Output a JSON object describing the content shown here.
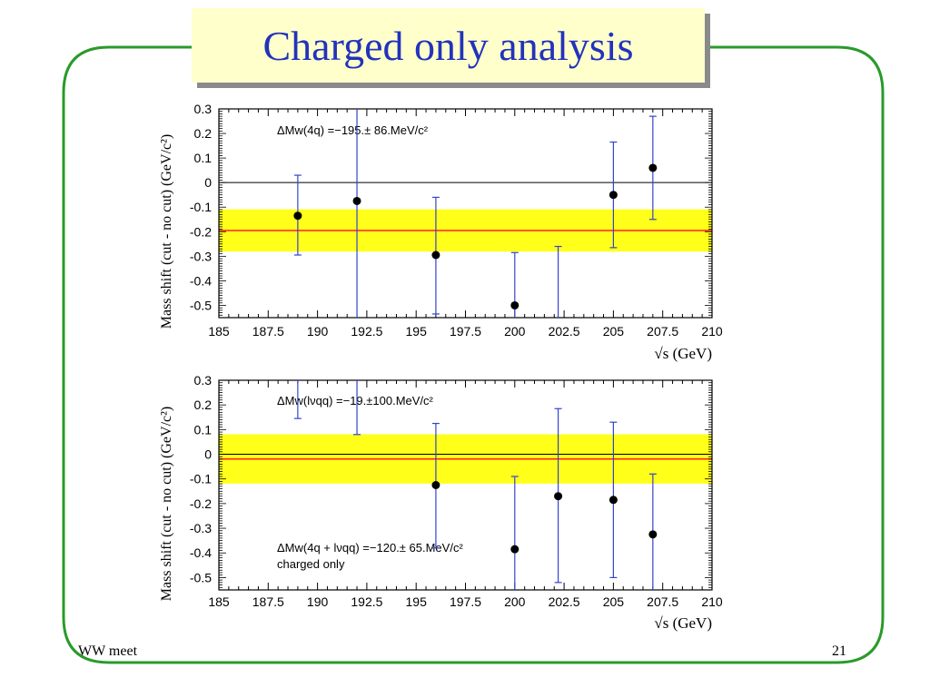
{
  "slide": {
    "title": "Charged only analysis",
    "footer_left": "WW meet",
    "page_number": "21"
  },
  "colors": {
    "frame": "#2a9a2a",
    "title_text": "#2233bb",
    "title_box": "#ffffcc",
    "band": "#ffff1a",
    "mean_line": "#ff2020",
    "error_bar": "#3344cc",
    "point": "#000000"
  },
  "chart_data": [
    {
      "type": "scatter",
      "title": "",
      "ylabel": "Mass shift (cut - no cut) (GeV/c²)",
      "xlabel": "√s (GeV)",
      "xlim": [
        185,
        210
      ],
      "ylim": [
        -0.55,
        0.3
      ],
      "x_ticks": [
        "185",
        "187.5",
        "190",
        "192.5",
        "195",
        "197.5",
        "200",
        "202.5",
        "205",
        "207.5",
        "210"
      ],
      "y_ticks": [
        "0.3",
        "0.2",
        "0.1",
        "0",
        "-0.1",
        "-0.2",
        "-0.3",
        "-0.4",
        "-0.5"
      ],
      "annotations": [
        "ΔMw(4q) =−195.± 86.MeV/c²"
      ],
      "band": {
        "center": -0.195,
        "low": -0.281,
        "high": -0.109
      },
      "zero_line": true,
      "points": [
        {
          "x": 189,
          "y": -0.135,
          "err_low": -0.295,
          "err_high": 0.03
        },
        {
          "x": 192,
          "y": -0.075,
          "err_low": -0.55,
          "err_high": 0.3
        },
        {
          "x": 196,
          "y": -0.295,
          "err_low": -0.535,
          "err_high": -0.06
        },
        {
          "x": 200,
          "y": -0.5,
          "err_low": -0.55,
          "err_high": -0.285
        },
        {
          "x": 202.2,
          "y": null,
          "err_low": -0.55,
          "err_high": -0.26
        },
        {
          "x": 205,
          "y": -0.05,
          "err_low": -0.265,
          "err_high": 0.165
        },
        {
          "x": 207,
          "y": 0.06,
          "err_low": -0.15,
          "err_high": 0.27
        }
      ]
    },
    {
      "type": "scatter",
      "title": "",
      "ylabel": "Mass shift (cut - no cut) (GeV/c²)",
      "xlabel": "√s (GeV)",
      "xlim": [
        185,
        210
      ],
      "ylim": [
        -0.55,
        0.3
      ],
      "x_ticks": [
        "185",
        "187.5",
        "190",
        "192.5",
        "195",
        "197.5",
        "200",
        "202.5",
        "205",
        "207.5",
        "210"
      ],
      "y_ticks": [
        "0.3",
        "0.2",
        "0.1",
        "0",
        "-0.1",
        "-0.2",
        "-0.3",
        "-0.4",
        "-0.5"
      ],
      "annotations": [
        "ΔMw(lνqq) =−19.±100.MeV/c²",
        "ΔMw(4q + lνqq) =−120.± 65.MeV/c²",
        "charged only"
      ],
      "band": {
        "center": -0.019,
        "low": -0.119,
        "high": 0.081
      },
      "zero_line": true,
      "points": [
        {
          "x": 189,
          "y": null,
          "err_low": 0.145,
          "err_high": 0.3
        },
        {
          "x": 192,
          "y": null,
          "err_low": 0.08,
          "err_high": 0.3
        },
        {
          "x": 196,
          "y": -0.125,
          "err_low": -0.38,
          "err_high": 0.125
        },
        {
          "x": 200,
          "y": -0.385,
          "err_low": -0.55,
          "err_high": -0.09
        },
        {
          "x": 202.2,
          "y": -0.17,
          "err_low": -0.52,
          "err_high": 0.185
        },
        {
          "x": 205,
          "y": -0.185,
          "err_low": -0.5,
          "err_high": 0.13
        },
        {
          "x": 207,
          "y": -0.325,
          "err_low": -0.55,
          "err_high": -0.08
        }
      ]
    }
  ]
}
